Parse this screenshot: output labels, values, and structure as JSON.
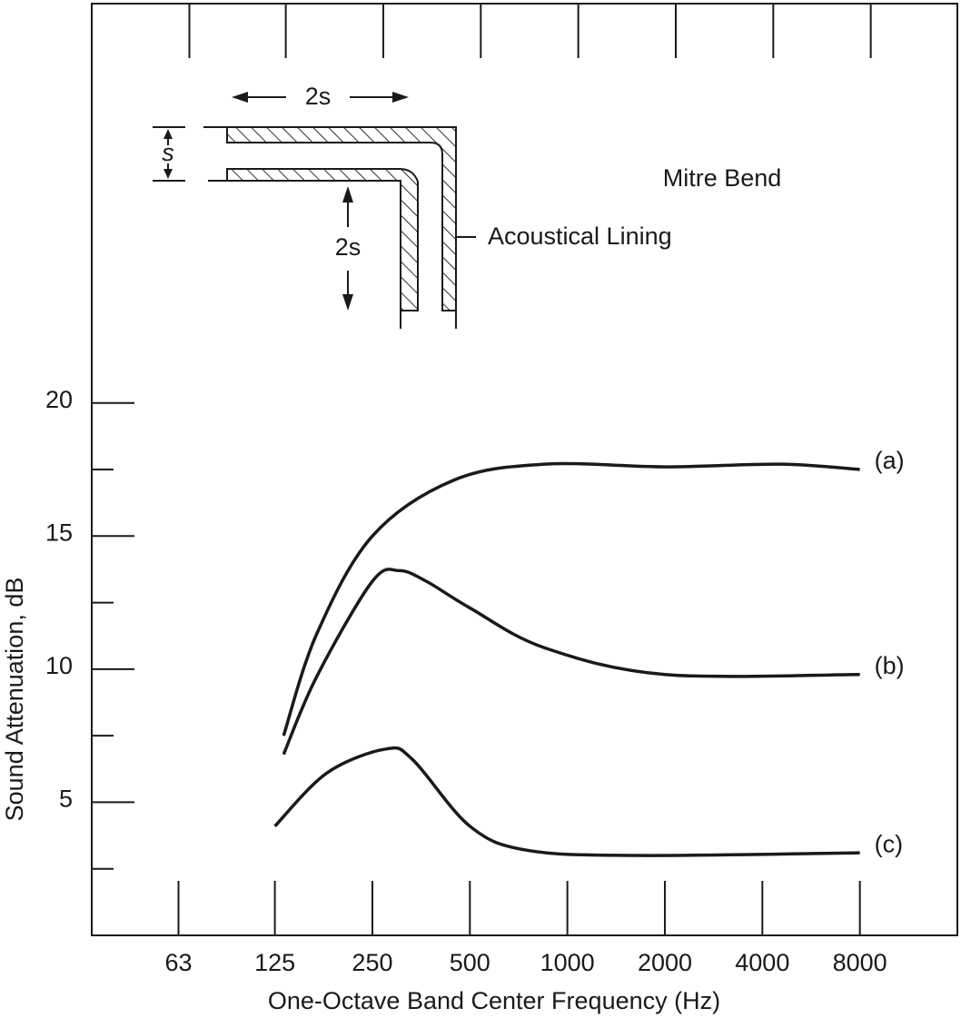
{
  "chart_data": {
    "type": "line",
    "xlabel": "One-Octave Band Center Frequency (Hz)",
    "ylabel": "Sound Attenuation, dB",
    "annotations": [
      "Mitre Bend",
      "Acoustical Lining",
      "2s",
      "s",
      "2s"
    ],
    "xscale": "log",
    "xlim": [
      34,
      16000
    ],
    "xticks": [
      63,
      125,
      250,
      500,
      1000,
      2000,
      4000,
      8000
    ],
    "ylim": [
      0,
      35
    ],
    "yticks": [
      5,
      10,
      15,
      20
    ],
    "yminorticks": [
      2.5,
      7.5,
      12.5,
      17.5
    ],
    "grid": false,
    "series": [
      {
        "name": "(a)",
        "color": "#1a1a1a",
        "x": [
          133,
          168,
          250,
          446,
          851,
          2000,
          4567,
          8000
        ],
        "values": [
          7.5,
          11.3,
          15.0,
          17.1,
          17.7,
          17.6,
          17.7,
          17.5
        ]
      },
      {
        "name": "(b)",
        "color": "#1a1a1a",
        "x": [
          133,
          168,
          250,
          303,
          367,
          500,
          851,
          2000,
          8000
        ],
        "values": [
          6.8,
          9.7,
          13.3,
          13.7,
          13.3,
          12.3,
          10.8,
          9.8,
          9.8
        ]
      },
      {
        "name": "(c)",
        "color": "#1a1a1a",
        "x": [
          125,
          181,
          275,
          333,
          500,
          748,
          1625,
          8000
        ],
        "values": [
          4.1,
          6.1,
          7.0,
          6.6,
          4.1,
          3.2,
          3.0,
          3.1
        ]
      }
    ]
  }
}
